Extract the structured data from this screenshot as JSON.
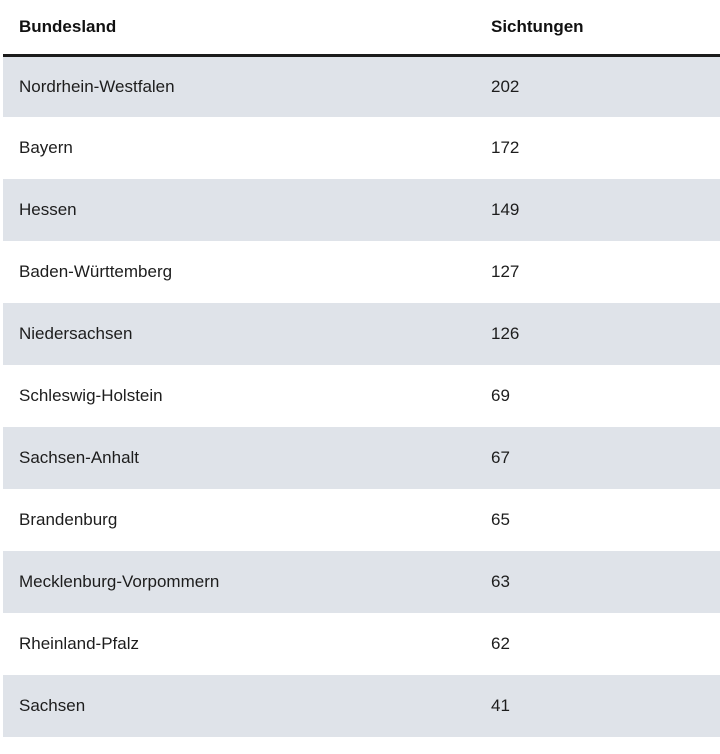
{
  "table": {
    "columns": [
      {
        "key": "bundesland",
        "label": "Bundesland"
      },
      {
        "key": "sichtungen",
        "label": "Sichtungen"
      }
    ],
    "rows": [
      {
        "bundesland": "Nordrhein-Westfalen",
        "sichtungen": 202
      },
      {
        "bundesland": "Bayern",
        "sichtungen": 172
      },
      {
        "bundesland": "Hessen",
        "sichtungen": 149
      },
      {
        "bundesland": "Baden-Württemberg",
        "sichtungen": 127
      },
      {
        "bundesland": "Niedersachsen",
        "sichtungen": 126
      },
      {
        "bundesland": "Schleswig-Holstein",
        "sichtungen": 69
      },
      {
        "bundesland": "Sachsen-Anhalt",
        "sichtungen": 67
      },
      {
        "bundesland": "Brandenburg",
        "sichtungen": 65
      },
      {
        "bundesland": "Mecklenburg-Vorpommern",
        "sichtungen": 63
      },
      {
        "bundesland": "Rheinland-Pfalz",
        "sichtungen": 62
      },
      {
        "bundesland": "Sachsen",
        "sichtungen": 41
      }
    ]
  },
  "colors": {
    "row_shaded": "#dfe3e9",
    "row_plain": "#ffffff",
    "header_rule": "#1b1b1b",
    "text": "#1d1d1d"
  },
  "chart_data": {
    "type": "table",
    "columns": [
      "Bundesland",
      "Sichtungen"
    ],
    "categories": [
      "Nordrhein-Westfalen",
      "Bayern",
      "Hessen",
      "Baden-Württemberg",
      "Niedersachsen",
      "Schleswig-Holstein",
      "Sachsen-Anhalt",
      "Brandenburg",
      "Mecklenburg-Vorpommern",
      "Rheinland-Pfalz",
      "Sachsen"
    ],
    "values": [
      202,
      172,
      149,
      127,
      126,
      69,
      67,
      65,
      63,
      62,
      41
    ]
  }
}
